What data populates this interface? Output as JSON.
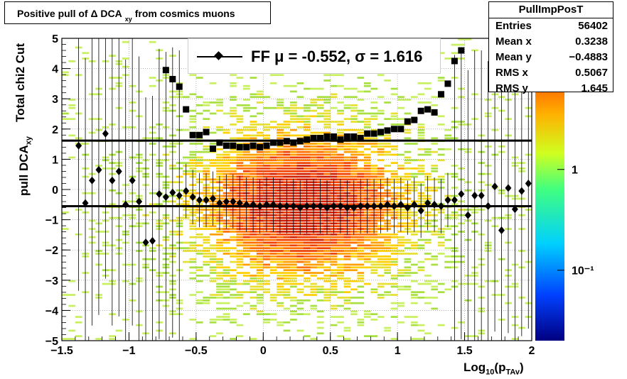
{
  "title": {
    "prefix": "Positive pull of Δ DCA",
    "subscript": "xy",
    "suffix": "from cosmics muons"
  },
  "stats": {
    "name": "PullImpPosT",
    "rows": [
      {
        "k": "Entries",
        "v": "56402"
      },
      {
        "k": "Mean x",
        "v": "0.3238"
      },
      {
        "k": "Mean y",
        "v": "−0.4883"
      },
      {
        "k": "RMS x",
        "v": "0.5067"
      },
      {
        "k": "RMS y",
        "v": "1.645"
      }
    ]
  },
  "legend": {
    "label": "FF μ = -0.552, σ =   1.616"
  },
  "axes": {
    "ylabel_main": "pull DCA",
    "ylabel_sub": "xy",
    "ylabel_extra": "Total chi2 Cut",
    "xlabel_main": "Log",
    "xlabel_sub1": "10",
    "xlabel_mid": "(p",
    "xlabel_sub2": "TAv",
    "xlabel_end": ")"
  },
  "colors": {
    "frame": "#000000",
    "grid": "#888888",
    "marker": "#000000",
    "heat_low": "#a8e060",
    "heat_high": "#e03000"
  },
  "chart_data": {
    "type": "scatter",
    "xlim": [
      -1.5,
      2
    ],
    "ylim": [
      -5,
      5
    ],
    "zscale": "log",
    "zlim": [
      0.02,
      20
    ],
    "x_ticks": [
      "−1.5",
      "−1",
      "−0.5",
      "0",
      "0.5",
      "1",
      "1.5",
      "2"
    ],
    "y_ticks": [
      "−5",
      "−4",
      "−3",
      "−2",
      "−1",
      "0",
      "1",
      "2",
      "3",
      "4",
      "5"
    ],
    "z_ticks": [
      "10⁻¹",
      "1"
    ],
    "grid": true,
    "horizontal_lines": [
      -0.552,
      1.616
    ],
    "series": [
      {
        "marker": "diamond",
        "x": [
          -1.375,
          -1.325,
          -1.275,
          -1.225,
          -1.175,
          -1.125,
          -1.075,
          -1.025,
          -0.975,
          -0.925,
          -0.875,
          -0.825,
          -0.775,
          -0.725,
          -0.675,
          -0.625,
          -0.575,
          -0.525,
          -0.475,
          -0.425,
          -0.375,
          -0.325,
          -0.275,
          -0.225,
          -0.175,
          -0.125,
          -0.075,
          -0.025,
          0.025,
          0.075,
          0.125,
          0.175,
          0.225,
          0.275,
          0.325,
          0.375,
          0.425,
          0.475,
          0.525,
          0.575,
          0.625,
          0.675,
          0.725,
          0.775,
          0.825,
          0.875,
          0.925,
          0.975,
          1.025,
          1.075,
          1.125,
          1.175,
          1.225,
          1.275,
          1.325,
          1.375,
          1.425,
          1.475,
          1.525,
          1.575,
          1.625,
          1.675,
          1.725,
          1.775,
          1.825,
          1.875,
          1.925,
          1.975
        ],
        "y": [
          1.45,
          -0.45,
          0.3,
          0.65,
          1.85,
          0.3,
          0.6,
          -0.5,
          0.3,
          -0.4,
          -1.75,
          -1.7,
          -0.15,
          -0.25,
          -0.1,
          -0.2,
          -0.05,
          -0.25,
          -0.35,
          -0.35,
          -0.3,
          -0.45,
          -0.4,
          -0.4,
          -0.45,
          -0.5,
          -0.5,
          -0.55,
          -0.5,
          -0.5,
          -0.55,
          -0.55,
          -0.55,
          -0.6,
          -0.55,
          -0.55,
          -0.55,
          -0.6,
          -0.55,
          -0.55,
          -0.6,
          -0.6,
          -0.55,
          -0.55,
          -0.55,
          -0.55,
          -0.5,
          -0.55,
          -0.5,
          -0.6,
          -0.5,
          -0.7,
          -0.45,
          -0.5,
          -0.55,
          -0.35,
          -0.35,
          -0.15,
          -0.85,
          -0.2,
          -0.2,
          -0.55,
          0.1,
          -1.35,
          0.05,
          -0.65,
          -0.05,
          0.2
        ]
      },
      {
        "marker": "square",
        "x": [
          -0.725,
          -0.675,
          -0.625,
          -0.575,
          -0.525,
          -0.475,
          -0.425,
          -0.375,
          -0.325,
          -0.275,
          -0.225,
          -0.175,
          -0.125,
          -0.075,
          -0.025,
          0.025,
          0.075,
          0.125,
          0.175,
          0.225,
          0.275,
          0.325,
          0.375,
          0.425,
          0.475,
          0.525,
          0.575,
          0.625,
          0.675,
          0.725,
          0.775,
          0.825,
          0.875,
          0.925,
          0.975,
          1.025,
          1.075,
          1.125,
          1.175,
          1.225,
          1.275,
          1.325,
          1.375,
          1.425,
          1.475
        ],
        "y": [
          3.95,
          3.65,
          3.4,
          2.65,
          1.8,
          1.8,
          1.9,
          1.35,
          1.55,
          1.45,
          1.45,
          1.4,
          1.4,
          1.45,
          1.4,
          1.45,
          1.55,
          1.55,
          1.6,
          1.55,
          1.6,
          1.65,
          1.7,
          1.7,
          1.75,
          1.75,
          1.65,
          1.75,
          1.75,
          1.7,
          1.85,
          1.85,
          1.9,
          1.95,
          2.0,
          2.0,
          2.25,
          2.3,
          2.6,
          2.65,
          2.55,
          3.15,
          3.5,
          4.25,
          4.6
        ]
      }
    ]
  }
}
